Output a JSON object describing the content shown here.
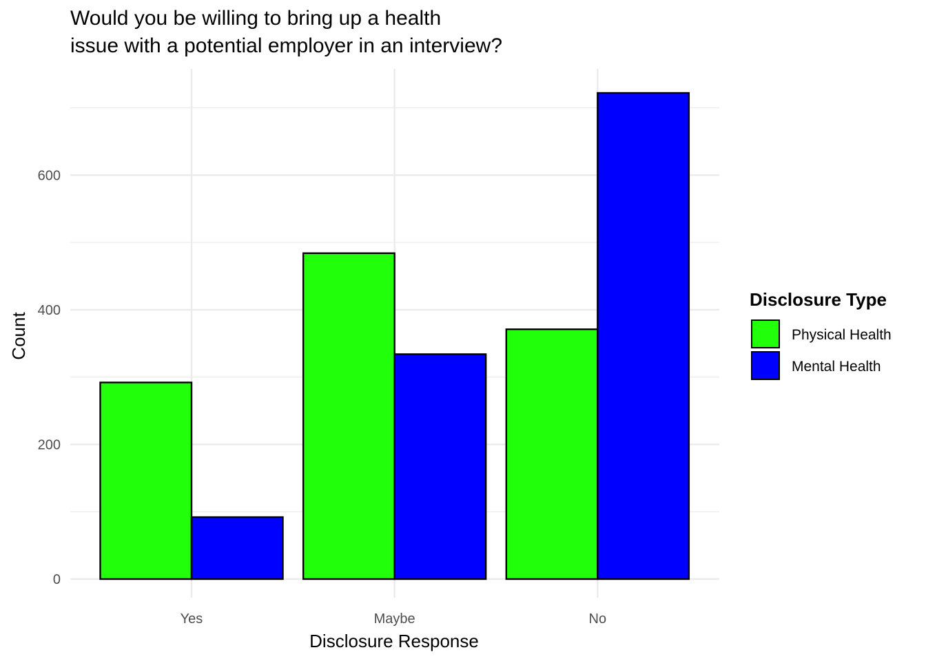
{
  "chart_data": {
    "type": "bar",
    "title_lines": [
      "Would you be willing to bring up a health",
      "issue with a potential employer in an interview?"
    ],
    "xlabel": "Disclosure Response",
    "ylabel": "Count",
    "categories": [
      "Yes",
      "Maybe",
      "No"
    ],
    "series": [
      {
        "name": "Physical Health",
        "color": "#22ff0a",
        "values": [
          292,
          484,
          371
        ]
      },
      {
        "name": "Mental Health",
        "color": "#0000ff",
        "values": [
          92,
          334,
          722
        ]
      }
    ],
    "ylim": [
      0,
      722
    ],
    "yticks": [
      0,
      200,
      400,
      600
    ],
    "grid": true,
    "legend": {
      "title": "Disclosure Type",
      "placement": "right"
    }
  }
}
